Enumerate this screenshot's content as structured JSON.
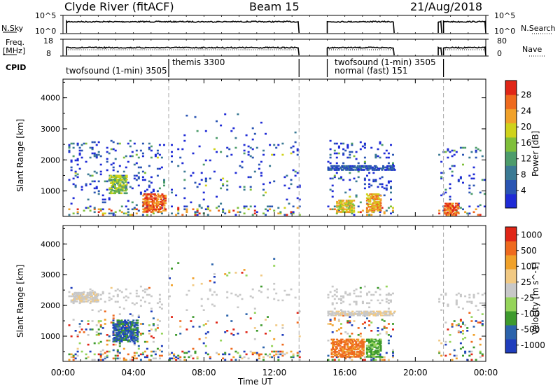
{
  "header": {
    "radar": "Clyde River (fitACF)",
    "beam": "Beam 15",
    "date": "21/Aug/2018"
  },
  "strip_labels": {
    "nsky": "N.Sky",
    "nsky_top": "10^5",
    "nsky_bot": "10^0",
    "freq_line1": "Freq.",
    "freq_line2": "[MHz]",
    "freq_top": "18",
    "freq_bot": "8",
    "cpid": "CPID",
    "nsearch": "N.Search",
    "nsearch_top": "10^5",
    "nsearch_bot": "10^0",
    "nave": "Nave",
    "nave_top": "80",
    "nave_bot": "0"
  },
  "cpid_labels": [
    "twofsound (1-min) 3505",
    "themis 3300",
    "twofsound (1-min) 3505",
    "normal (fast) 151"
  ],
  "colors": {
    "power_scale": [
      "#1f2bd6",
      "#2a55b3",
      "#3b7a94",
      "#4d9c6b",
      "#7fbf3a",
      "#cfd21b",
      "#f0a12a",
      "#ee6a1e",
      "#e02617"
    ],
    "velocity_scale": [
      "#e02617",
      "#ee6a1e",
      "#f0a12a",
      "#f1c983",
      "#c8c8c8",
      "#95d45a",
      "#3e9a2d",
      "#2b63ab",
      "#1f3dbc"
    ]
  },
  "chart_data": [
    {
      "type": "heatmap",
      "ylabel": "Slant Range [km]",
      "xlabel": "Time UT",
      "x_ticks": [
        "00:00",
        "04:00",
        "08:00",
        "12:00",
        "16:00",
        "20:00",
        "00:00"
      ],
      "y_ticks": [
        "1000",
        "2000",
        "3000",
        "4000"
      ],
      "ylim": [
        180,
        4600
      ],
      "xlim_hours": [
        0,
        24
      ],
      "colorbar": {
        "label": "Power [dB]",
        "ticks": [
          "4",
          "8",
          "12",
          "16",
          "20",
          "24",
          "28"
        ]
      },
      "scatter_regions": [
        {
          "t": [
            0.3,
            5.8
          ],
          "r": [
            200,
            2600
          ],
          "density": 0.35
        },
        {
          "t": [
            6.0,
            13.5
          ],
          "r": [
            200,
            3500
          ],
          "density": 0.12
        },
        {
          "t": [
            15.0,
            18.8
          ],
          "r": [
            200,
            2600
          ],
          "density": 0.35
        },
        {
          "t": [
            21.3,
            24.0
          ],
          "r": [
            200,
            2400
          ],
          "density": 0.3
        }
      ],
      "data_gaps_hours": [
        [
          13.4,
          15.0
        ],
        [
          18.8,
          21.3
        ]
      ],
      "vertical_markers_hours": [
        6.0,
        13.4,
        21.6
      ]
    },
    {
      "type": "heatmap",
      "ylabel": "Slant Range [km]",
      "xlabel": "Time UT",
      "x_ticks": [
        "00:00",
        "04:00",
        "08:00",
        "12:00",
        "16:00",
        "20:00",
        "00:00"
      ],
      "y_ticks": [
        "1000",
        "2000",
        "3000",
        "4000"
      ],
      "ylim": [
        180,
        4600
      ],
      "xlim_hours": [
        0,
        24
      ],
      "colorbar": {
        "label": "Velocity [m s^-1]",
        "ticks": [
          "1000",
          "500",
          "100",
          "25",
          "-25",
          "-100",
          "-500",
          "-1000"
        ]
      },
      "data_gaps_hours": [
        [
          13.4,
          15.0
        ],
        [
          18.8,
          21.3
        ]
      ],
      "vertical_markers_hours": [
        6.0,
        13.4,
        21.6
      ]
    }
  ]
}
